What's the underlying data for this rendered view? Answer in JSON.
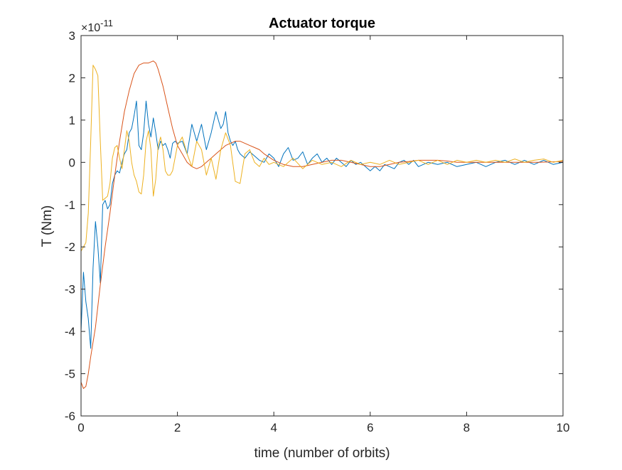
{
  "chart_data": {
    "type": "line",
    "title": "Actuator torque",
    "xlabel": "time (number of orbits)",
    "ylabel": "T (Nm)",
    "y_exponent_label": "×10",
    "y_exponent_power": "-11",
    "y_scale_factor": 1e-11,
    "xlim": [
      0,
      10
    ],
    "ylim": [
      -6,
      3
    ],
    "xticks": [
      0,
      2,
      4,
      6,
      8,
      10
    ],
    "yticks": [
      -6,
      -5,
      -4,
      -3,
      -2,
      -1,
      0,
      1,
      2,
      3
    ],
    "grid": false,
    "legend": "none",
    "series": [
      {
        "color": "#0072BD",
        "x": [
          0,
          0.05,
          0.1,
          0.15,
          0.2,
          0.25,
          0.3,
          0.35,
          0.4,
          0.45,
          0.5,
          0.55,
          0.6,
          0.65,
          0.7,
          0.75,
          0.8,
          0.85,
          0.9,
          0.95,
          1.0,
          1.05,
          1.1,
          1.15,
          1.2,
          1.25,
          1.3,
          1.35,
          1.4,
          1.45,
          1.5,
          1.55,
          1.6,
          1.65,
          1.7,
          1.75,
          1.8,
          1.85,
          1.9,
          1.95,
          2.0,
          2.1,
          2.2,
          2.3,
          2.4,
          2.5,
          2.6,
          2.7,
          2.8,
          2.9,
          2.95,
          3.0,
          3.05,
          3.1,
          3.15,
          3.2,
          3.25,
          3.3,
          3.4,
          3.5,
          3.6,
          3.7,
          3.8,
          3.9,
          4.0,
          4.1,
          4.2,
          4.3,
          4.4,
          4.5,
          4.6,
          4.7,
          4.8,
          4.9,
          5.0,
          5.1,
          5.2,
          5.3,
          5.4,
          5.5,
          5.6,
          5.7,
          5.8,
          5.9,
          6.0,
          6.1,
          6.2,
          6.3,
          6.4,
          6.5,
          6.6,
          6.7,
          6.8,
          6.9,
          7.0,
          7.2,
          7.4,
          7.6,
          7.8,
          8.0,
          8.2,
          8.4,
          8.6,
          8.8,
          9.0,
          9.2,
          9.4,
          9.6,
          9.8,
          10.0
        ],
        "y": [
          -4.0,
          -2.6,
          -3.3,
          -3.7,
          -4.4,
          -2.5,
          -1.4,
          -2.0,
          -2.85,
          -1.0,
          -0.9,
          -1.1,
          -1.0,
          -0.5,
          -0.3,
          -0.2,
          -0.25,
          0.0,
          0.2,
          0.3,
          0.7,
          0.8,
          1.1,
          1.45,
          0.4,
          0.3,
          0.7,
          1.45,
          0.9,
          0.6,
          1.05,
          0.7,
          0.3,
          0.5,
          0.4,
          0.45,
          0.3,
          0.1,
          0.45,
          0.5,
          0.45,
          0.5,
          0.2,
          0.9,
          0.5,
          0.9,
          0.3,
          0.7,
          1.2,
          0.8,
          0.9,
          1.2,
          0.7,
          0.5,
          0.4,
          0.5,
          0.3,
          0.2,
          0.1,
          0.25,
          0.15,
          0.05,
          0.0,
          0.2,
          0.1,
          -0.1,
          0.2,
          0.35,
          0.05,
          0.1,
          0.25,
          -0.05,
          0.1,
          0.2,
          0.0,
          0.1,
          -0.05,
          0.1,
          0.0,
          -0.1,
          0.05,
          -0.05,
          0.0,
          -0.1,
          -0.2,
          -0.1,
          -0.2,
          -0.05,
          -0.1,
          -0.15,
          0.0,
          0.05,
          -0.05,
          0.05,
          -0.1,
          0.0,
          -0.05,
          0.0,
          -0.1,
          -0.05,
          0.0,
          -0.1,
          0.0,
          0.05,
          -0.05,
          0.05,
          -0.05,
          0.05,
          -0.05,
          0.0
        ]
      },
      {
        "color": "#D95319",
        "x": [
          0,
          0.05,
          0.1,
          0.15,
          0.2,
          0.3,
          0.4,
          0.5,
          0.6,
          0.7,
          0.8,
          0.9,
          1.0,
          1.1,
          1.2,
          1.3,
          1.4,
          1.5,
          1.55,
          1.6,
          1.7,
          1.8,
          1.9,
          2.0,
          2.1,
          2.2,
          2.3,
          2.4,
          2.5,
          2.6,
          2.7,
          2.8,
          2.9,
          3.0,
          3.1,
          3.2,
          3.3,
          3.4,
          3.5,
          3.6,
          3.7,
          3.8,
          4.0,
          4.2,
          4.4,
          4.6,
          4.8,
          5.0,
          5.2,
          5.4,
          5.6,
          5.8,
          6.0,
          6.2,
          6.4,
          6.6,
          6.8,
          7.0,
          7.2,
          7.4,
          7.6,
          7.8,
          8.0,
          8.5,
          9.0,
          9.5,
          10.0
        ],
        "y": [
          -5.2,
          -5.35,
          -5.3,
          -5.0,
          -4.6,
          -3.9,
          -2.9,
          -2.0,
          -1.2,
          -0.3,
          0.5,
          1.2,
          1.7,
          2.1,
          2.3,
          2.35,
          2.35,
          2.4,
          2.35,
          2.2,
          1.8,
          1.3,
          0.8,
          0.4,
          0.2,
          0.0,
          -0.1,
          -0.15,
          -0.1,
          0.0,
          0.1,
          0.2,
          0.3,
          0.4,
          0.45,
          0.5,
          0.5,
          0.45,
          0.4,
          0.35,
          0.3,
          0.2,
          0.05,
          -0.05,
          -0.1,
          -0.1,
          -0.05,
          0.0,
          0.05,
          0.05,
          0.0,
          -0.05,
          -0.1,
          -0.1,
          -0.05,
          0.0,
          0.02,
          0.05,
          0.05,
          0.05,
          0.03,
          0.0,
          0.0,
          0.0,
          0.0,
          0.0,
          0.02
        ]
      },
      {
        "color": "#EDB120",
        "x": [
          0,
          0.05,
          0.1,
          0.15,
          0.2,
          0.25,
          0.3,
          0.35,
          0.4,
          0.45,
          0.5,
          0.55,
          0.6,
          0.65,
          0.7,
          0.75,
          0.8,
          0.85,
          0.9,
          0.95,
          1.0,
          1.05,
          1.1,
          1.15,
          1.2,
          1.25,
          1.3,
          1.35,
          1.4,
          1.45,
          1.5,
          1.55,
          1.6,
          1.65,
          1.7,
          1.75,
          1.8,
          1.85,
          1.9,
          2.0,
          2.1,
          2.2,
          2.3,
          2.4,
          2.5,
          2.6,
          2.7,
          2.8,
          2.9,
          3.0,
          3.1,
          3.2,
          3.3,
          3.4,
          3.5,
          3.6,
          3.7,
          3.8,
          3.9,
          4.0,
          4.2,
          4.4,
          4.6,
          4.8,
          5.0,
          5.2,
          5.4,
          5.6,
          5.8,
          6.0,
          6.2,
          6.4,
          6.6,
          6.8,
          7.0,
          7.2,
          7.4,
          7.6,
          7.8,
          8.0,
          8.2,
          8.4,
          8.6,
          8.8,
          9.0,
          9.2,
          9.4,
          9.6,
          9.8,
          10.0
        ],
        "y": [
          -2.1,
          -2.0,
          -1.9,
          -1.2,
          0.5,
          2.3,
          2.2,
          2.05,
          0.5,
          -0.9,
          -0.85,
          -0.8,
          -0.5,
          0.1,
          0.35,
          0.4,
          0.1,
          -0.15,
          0.3,
          0.75,
          0.5,
          0.0,
          -0.3,
          -0.45,
          -0.7,
          -0.75,
          -0.3,
          0.5,
          0.75,
          0.3,
          -0.8,
          -0.4,
          0.4,
          0.6,
          0.3,
          -0.2,
          -0.3,
          -0.3,
          -0.2,
          0.4,
          0.6,
          0.2,
          -0.1,
          0.5,
          0.3,
          -0.3,
          0.1,
          -0.4,
          0.3,
          0.7,
          0.4,
          -0.45,
          -0.5,
          0.2,
          0.3,
          0.0,
          -0.1,
          0.1,
          -0.05,
          0.0,
          -0.1,
          0.1,
          -0.15,
          0.05,
          -0.05,
          0.0,
          -0.1,
          0.05,
          -0.05,
          0.0,
          -0.05,
          0.05,
          -0.05,
          0.0,
          0.05,
          -0.05,
          0.05,
          -0.05,
          0.05,
          0.0,
          0.05,
          0.0,
          0.05,
          0.0,
          0.08,
          0.0,
          0.05,
          0.08,
          0.0,
          0.05
        ]
      }
    ]
  }
}
